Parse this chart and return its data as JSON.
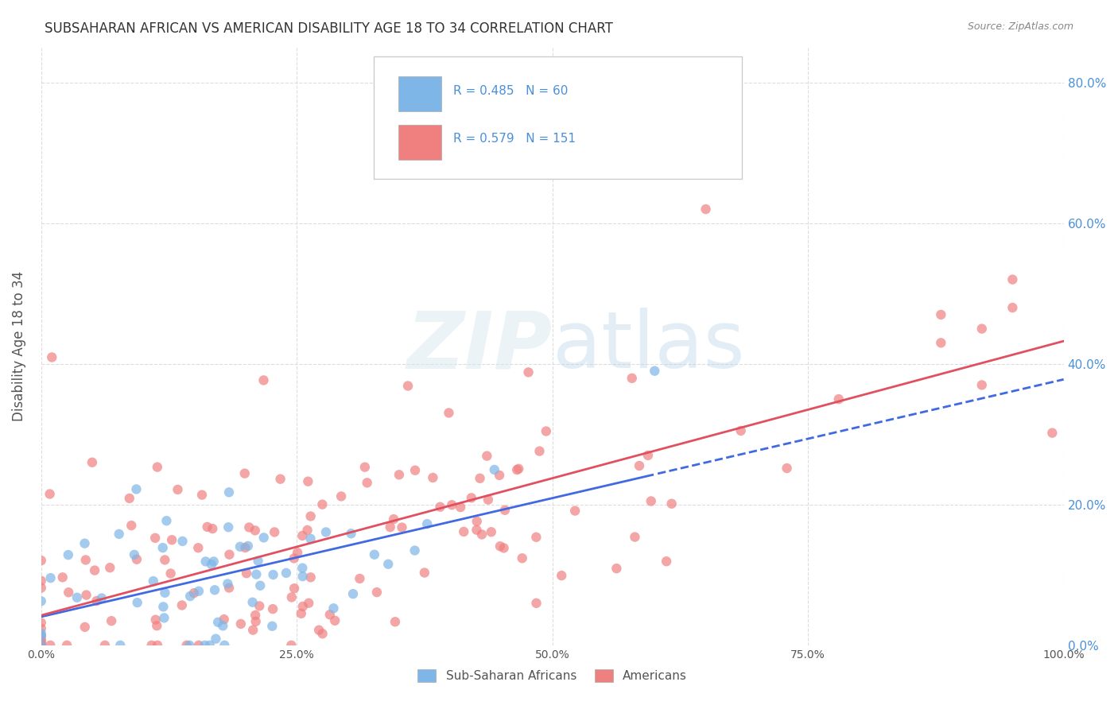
{
  "title": "SUBSAHARAN AFRICAN VS AMERICAN DISABILITY AGE 18 TO 34 CORRELATION CHART",
  "source": "Source: ZipAtlas.com",
  "ylabel": "Disability Age 18 to 34",
  "legend_labels": [
    "Sub-Saharan Africans",
    "Americans"
  ],
  "blue_R": 0.485,
  "blue_N": 60,
  "pink_R": 0.579,
  "pink_N": 151,
  "blue_color": "#7EB6E8",
  "pink_color": "#F08080",
  "blue_line_color": "#4169E1",
  "pink_line_color": "#E05060",
  "bg_color": "#FFFFFF",
  "grid_color": "#DDDDDD",
  "axis_label_color": "#4A90D9",
  "title_color": "#333333"
}
